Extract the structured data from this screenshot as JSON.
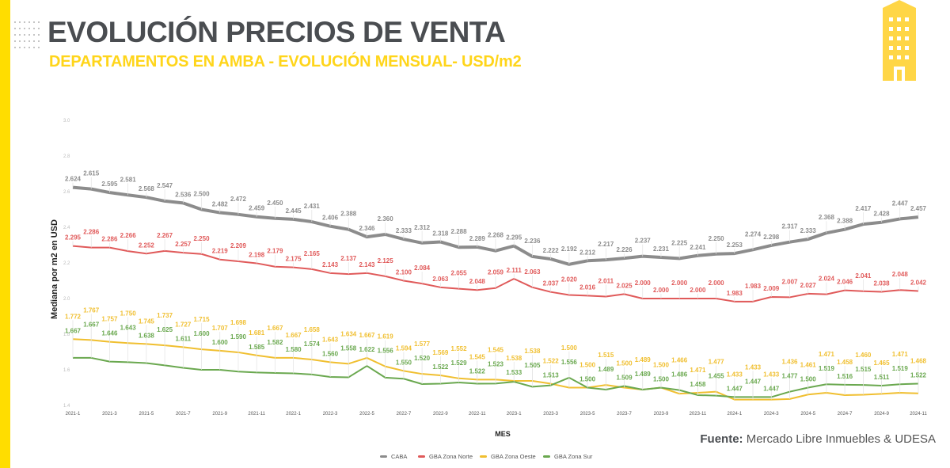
{
  "header": {
    "title": "EVOLUCIÓN PRECIOS DE VENTA",
    "subtitle": "DEPARTAMENTOS EN AMBA - EVOLUCIÓN MENSUAL- USD/m2"
  },
  "source": {
    "label": "Fuente:",
    "text": "Mercado Libre Inmuebles & UDESA"
  },
  "icons": {
    "brand_icon": "building-icon",
    "decoration": "dot-grid-icon"
  },
  "colors": {
    "accent": "#ffdd00",
    "title": "#4a4d51",
    "subtitle": "#ffd51a"
  },
  "chart_data": {
    "type": "line",
    "title": "EVOLUCIÓN PRECIOS DE VENTA",
    "subtitle": "DEPARTAMENTOS EN AMBA - EVOLUCIÓN MENSUAL- USD/m2",
    "xlabel": "MES",
    "ylabel": "Mediana por m2 en USD",
    "ylim": [
      1.4,
      3.0
    ],
    "yticks": [
      "3.0",
      "2.8",
      "2.6",
      "2.4",
      "2.2",
      "2.0",
      "1.8",
      "1.6",
      "1.4"
    ],
    "grid": false,
    "legend_position": "bottom-center",
    "x": [
      "2021-1",
      "2021-2",
      "2021-3",
      "2021-4",
      "2021-5",
      "2021-6",
      "2021-7",
      "2021-8",
      "2021-9",
      "2021-10",
      "2021-11",
      "2021-12",
      "2022-1",
      "2022-2",
      "2022-3",
      "2022-4",
      "2022-5",
      "2022-6",
      "2022-7",
      "2022-8",
      "2022-9",
      "2022-10",
      "2022-11",
      "2022-12",
      "2023-1",
      "2023-2",
      "2023-3",
      "2023-4",
      "2023-5",
      "2023-6",
      "2023-7",
      "2023-8",
      "2023-9",
      "2023-10",
      "2023-11",
      "2023-12",
      "2024-1",
      "2024-2",
      "2024-3",
      "2024-4",
      "2024-5",
      "2024-6",
      "2024-7",
      "2024-8",
      "2024-9",
      "2024-10",
      "2024-11"
    ],
    "xtick_labels": [
      "2021-1",
      "2021-3",
      "2021-5",
      "2021-7",
      "2021-9",
      "2021-11",
      "2022-1",
      "2022-3",
      "2022-5",
      "2022-7",
      "2022-9",
      "2022-11",
      "2023-1",
      "2023-3",
      "2023-5",
      "2023-7",
      "2023-9",
      "2023-11",
      "2024-1",
      "2024-3",
      "2024-5",
      "2024-7",
      "2024-9",
      "2024-11"
    ],
    "series": [
      {
        "name": "CABA",
        "color": "#8c8c8c",
        "values": [
          2.624,
          2.615,
          2.595,
          2.581,
          2.568,
          2.547,
          2.536,
          2.5,
          2.482,
          2.472,
          2.459,
          2.45,
          2.445,
          2.431,
          2.406,
          2.388,
          2.346,
          2.36,
          2.333,
          2.312,
          2.318,
          2.288,
          2.289,
          2.268,
          2.295,
          2.236,
          2.222,
          2.192,
          2.212,
          2.217,
          2.226,
          2.237,
          2.231,
          2.225,
          2.241,
          2.25,
          2.253,
          2.274,
          2.298,
          2.317,
          2.333,
          2.368,
          2.388,
          2.417,
          2.428,
          2.447,
          2.457
        ]
      },
      {
        "name": "GBA Zona Norte",
        "color": "#e05a5a",
        "values": [
          2.295,
          2.286,
          2.286,
          2.266,
          2.252,
          2.267,
          2.257,
          2.25,
          2.219,
          2.209,
          2.198,
          2.179,
          2.175,
          2.165,
          2.143,
          2.137,
          2.143,
          2.125,
          2.1,
          2.084,
          2.063,
          2.055,
          2.048,
          2.059,
          2.111,
          2.063,
          2.037,
          2.02,
          2.016,
          2.011,
          2.025,
          2.0,
          2.0,
          2.0,
          2.0,
          2.0,
          1.983,
          1.983,
          2.009,
          2.007,
          2.027,
          2.024,
          2.046,
          2.041,
          2.038,
          2.048,
          2.042
        ]
      },
      {
        "name": "GBA Zona Oeste",
        "color": "#f0bf30",
        "values": [
          1.772,
          1.767,
          1.757,
          1.75,
          1.745,
          1.737,
          1.727,
          1.715,
          1.707,
          1.698,
          1.681,
          1.667,
          1.667,
          1.658,
          1.643,
          1.634,
          1.667,
          1.619,
          1.594,
          1.577,
          1.569,
          1.552,
          1.545,
          1.545,
          1.538,
          1.538,
          1.522,
          1.5,
          1.5,
          1.515,
          1.5,
          1.489,
          1.5,
          1.466,
          1.471,
          1.477,
          1.433,
          1.433,
          1.433,
          1.436,
          1.461,
          1.471,
          1.458,
          1.46,
          1.465,
          1.471,
          1.468
        ]
      },
      {
        "name": "GBA Zona Sur",
        "color": "#6aa84f",
        "values": [
          1.667,
          1.667,
          1.646,
          1.643,
          1.638,
          1.625,
          1.611,
          1.6,
          1.6,
          1.59,
          1.585,
          1.582,
          1.58,
          1.574,
          1.56,
          1.558,
          1.622,
          1.556,
          1.55,
          1.52,
          1.522,
          1.529,
          1.522,
          1.523,
          1.533,
          1.505,
          1.513,
          1.556,
          1.5,
          1.489,
          1.509,
          1.489,
          1.5,
          1.486,
          1.458,
          1.455,
          1.447,
          1.447,
          1.447,
          1.477,
          1.5,
          1.519,
          1.516,
          1.515,
          1.511,
          1.519,
          1.522
        ]
      }
    ]
  }
}
